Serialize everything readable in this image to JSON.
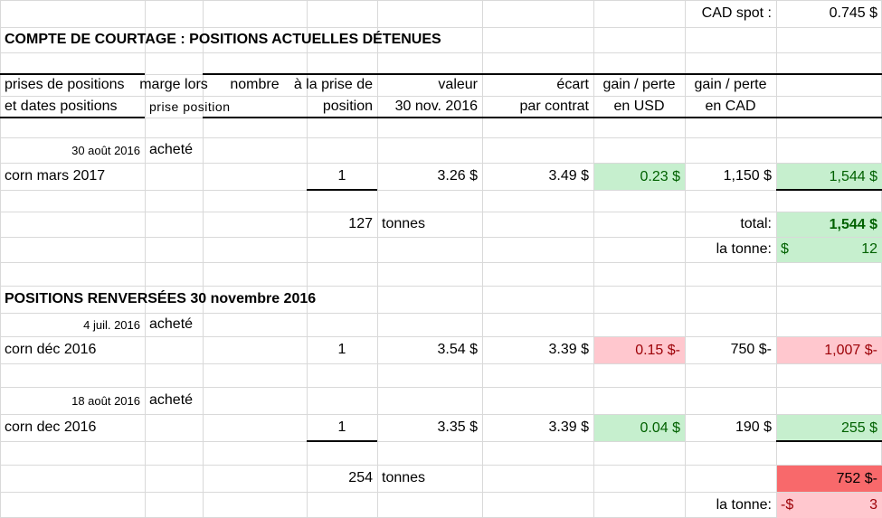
{
  "header": {
    "cad_spot_label": "CAD spot :",
    "cad_spot_value": "0.745 $",
    "title": "COMPTE DE COURTAGE :  POSITIONS ACTUELLES DÉTENUES"
  },
  "table": {
    "columns": [
      {
        "lines": [
          "prises de positions",
          "et dates positions"
        ]
      },
      {
        "lines": [
          "marge lors",
          "prise position"
        ]
      },
      {
        "lines": [
          "nombre"
        ]
      },
      {
        "lines": [
          "à la prise de",
          "position"
        ]
      },
      {
        "lines": [
          "valeur",
          "30 nov. 2016"
        ]
      },
      {
        "lines": [
          "écart",
          "par contrat"
        ]
      },
      {
        "lines": [
          "gain / perte",
          "en USD"
        ]
      },
      {
        "lines": [
          "gain / perte",
          "en CAD"
        ]
      }
    ],
    "current": {
      "positions": [
        {
          "date": "30 août 2016",
          "action": "acheté",
          "contract": "corn mars 2017",
          "number": "1",
          "price_at_entry": "3.26 $",
          "value": "3.49 $",
          "spread": "0.23 $",
          "gain_usd": "1,150 $",
          "gain_cad": "1,544 $"
        }
      ],
      "summary": {
        "tonnes": "127",
        "tonnes_label": "tonnes",
        "total_label": "total:",
        "total": "1,544 $",
        "per_tonne_label": "la tonne:",
        "per_tonne_currency": "$",
        "per_tonne": "12"
      }
    },
    "reversed": {
      "title": "POSITIONS RENVERSÉES 30 novembre 2016",
      "positions": [
        {
          "date": "4 juil. 2016",
          "action": "acheté",
          "contract": "corn déc 2016",
          "number": "1",
          "price_at_entry": "3.54 $",
          "value": "3.39 $",
          "spread": "0.15 $-",
          "gain_usd": "750 $-",
          "gain_cad": "1,007 $-"
        },
        {
          "date": "18 août 2016",
          "action": "acheté",
          "contract": "corn dec 2016",
          "number": "1",
          "price_at_entry": "3.35 $",
          "value": "3.39 $",
          "spread": "0.04 $",
          "gain_usd": "190 $",
          "gain_cad": "255 $"
        }
      ],
      "summary": {
        "tonnes": "254",
        "tonnes_label": "tonnes",
        "total": "752 $-",
        "per_tonne_label": "la tonne:",
        "per_tonne_currency": "-$",
        "per_tonne": "3"
      }
    }
  }
}
